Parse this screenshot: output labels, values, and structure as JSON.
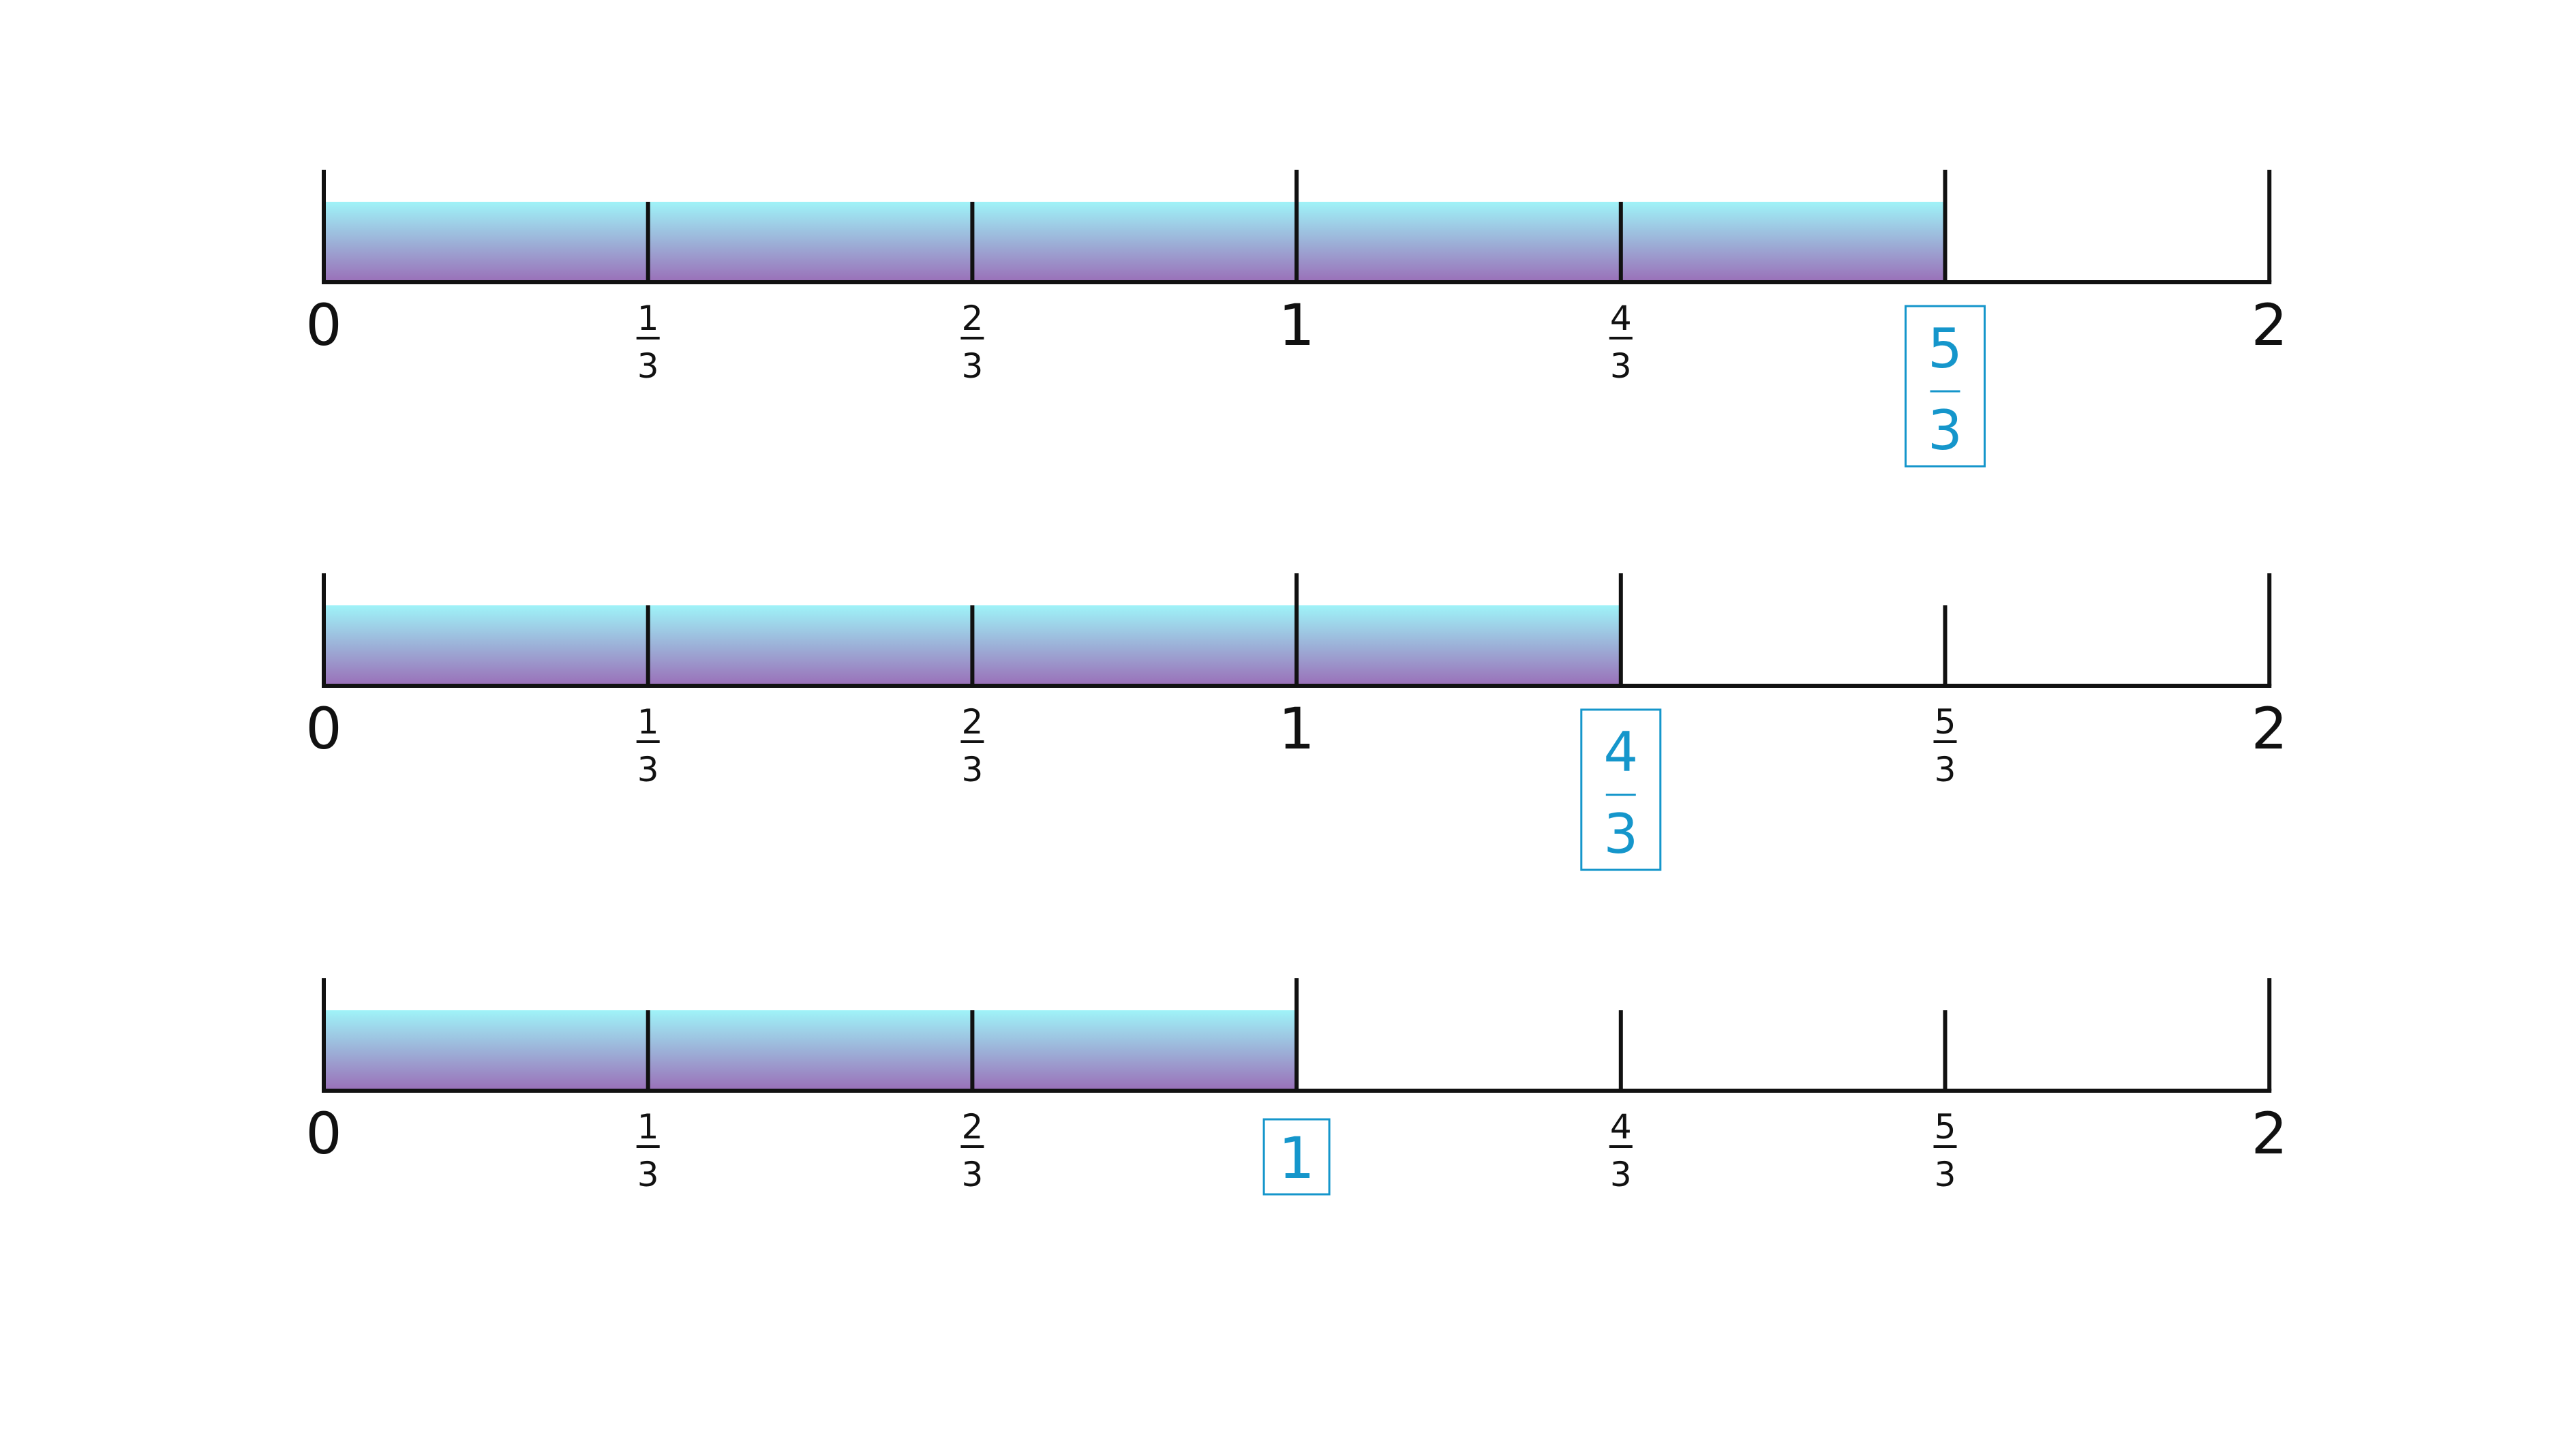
{
  "colors": {
    "fill_top": "#9ff3f8",
    "fill_bottom": "#9a6fb8",
    "line": "#111111",
    "highlight": "#1596cb"
  },
  "number_lines": [
    {
      "fill_to": 5,
      "ticks": [
        {
          "whole": "0"
        },
        {
          "num": "1",
          "den": "3"
        },
        {
          "num": "2",
          "den": "3"
        },
        {
          "whole": "1"
        },
        {
          "num": "4",
          "den": "3"
        },
        {
          "num": "5",
          "den": "3",
          "highlight": true
        },
        {
          "whole": "2"
        }
      ]
    },
    {
      "fill_to": 4,
      "ticks": [
        {
          "whole": "0"
        },
        {
          "num": "1",
          "den": "3"
        },
        {
          "num": "2",
          "den": "3"
        },
        {
          "whole": "1"
        },
        {
          "num": "4",
          "den": "3",
          "highlight": true
        },
        {
          "num": "5",
          "den": "3"
        },
        {
          "whole": "2"
        }
      ]
    },
    {
      "fill_to": 3,
      "ticks": [
        {
          "whole": "0"
        },
        {
          "num": "1",
          "den": "3"
        },
        {
          "num": "2",
          "den": "3"
        },
        {
          "whole": "1",
          "highlight": true
        },
        {
          "num": "4",
          "den": "3"
        },
        {
          "num": "5",
          "den": "3"
        },
        {
          "whole": "2"
        }
      ]
    }
  ]
}
